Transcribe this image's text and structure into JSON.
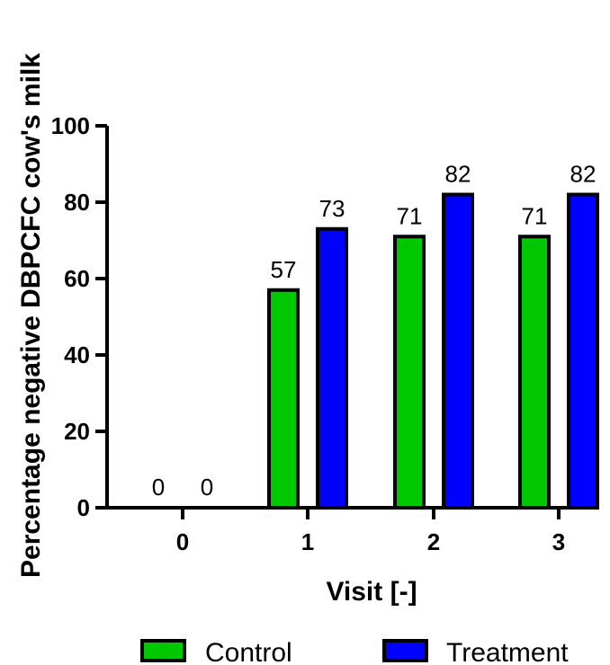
{
  "chart_data": {
    "type": "bar",
    "categories": [
      "0",
      "1",
      "2",
      "3"
    ],
    "series": [
      {
        "name": "Control",
        "values": [
          0,
          57,
          71,
          71
        ],
        "color": "#00c800"
      },
      {
        "name": "Treatment",
        "values": [
          0,
          73,
          82,
          82
        ],
        "color": "#0000ff"
      }
    ],
    "data_labels": [
      [
        "0",
        "57",
        "71",
        "71"
      ],
      [
        "0",
        "73",
        "82",
        "82"
      ]
    ],
    "xlabel": "Visit [-]",
    "ylabel": "Percentage negative DBPCFC cow's milk",
    "ylim": [
      0,
      100
    ],
    "yticks": [
      "0",
      "20",
      "40",
      "60",
      "80",
      "100"
    ],
    "grid": false,
    "legend_position": "bottom"
  }
}
